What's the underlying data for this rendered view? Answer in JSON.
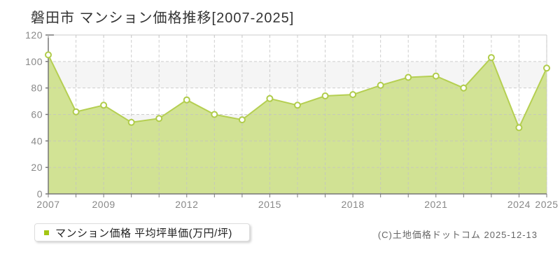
{
  "title": "磐田市 マンション価格推移[2007-2025]",
  "legend": {
    "label": "マンション価格 平均坪単価(万円/坪)"
  },
  "footer": {
    "copyright": "(C)土地価格ドットコム 2025-12-13"
  },
  "colors": {
    "area_fill": "#cde08a",
    "line": "#b5cf52",
    "marker_fill": "#ffffff",
    "marker_stroke": "#b0cc4a",
    "legend_square": "#a4c614",
    "band": "#f5f5f5",
    "grid": "#c3c3c3",
    "axis": "#777777",
    "plot_border": "#cccccc",
    "tick_label": "#888888",
    "title_color": "#333333",
    "footer_color": "#666666"
  },
  "chart_data": {
    "type": "area",
    "title": "磐田市 マンション価格推移[2007-2025]",
    "x": [
      2007,
      2008,
      2009,
      2010,
      2011,
      2012,
      2013,
      2014,
      2015,
      2016,
      2017,
      2018,
      2019,
      2020,
      2021,
      2022,
      2023,
      2024,
      2025
    ],
    "series": [
      {
        "name": "マンション価格 平均坪単価(万円/坪)",
        "values": [
          105,
          62,
          67,
          54,
          57,
          71,
          60,
          56,
          72,
          67,
          74,
          75,
          82,
          88,
          89,
          80,
          103,
          50,
          95
        ]
      }
    ],
    "ylabel": "平均坪単価(万円/坪)",
    "xlabel": "",
    "ylim": [
      0,
      120
    ],
    "ytick_step": 20,
    "x_label_years": [
      "2007",
      "2009",
      "2012",
      "2015",
      "2018",
      "2021",
      "2024",
      "2025"
    ],
    "x_label_indices": [
      0,
      2,
      5,
      8,
      11,
      14,
      17,
      18
    ],
    "grid": "dashed",
    "legend_position": "bottom-left"
  }
}
